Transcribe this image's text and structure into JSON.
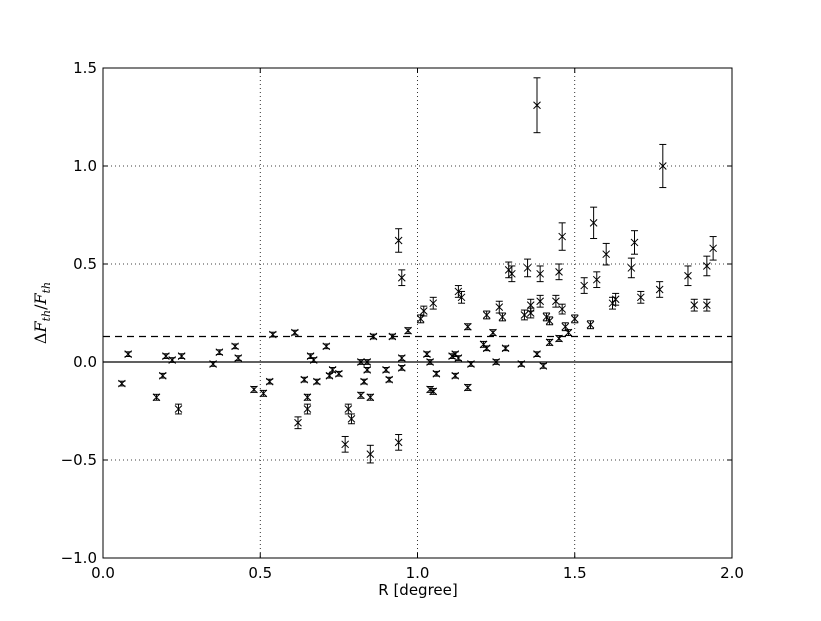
{
  "chart_data": {
    "type": "scatter",
    "xlabel": "R [degree]",
    "ylabel": "ΔF_th/F_th",
    "ylabel_parts": {
      "delta": "Δ",
      "f1": "F",
      "sub1": "th",
      "slash": "/",
      "f2": "F",
      "sub2": "th"
    },
    "xlim": [
      0.0,
      2.0
    ],
    "ylim": [
      -1.0,
      1.5
    ],
    "xticks": [
      0.0,
      0.5,
      1.0,
      1.5,
      2.0
    ],
    "yticks": [
      -1.0,
      -0.5,
      0.0,
      0.5,
      1.0,
      1.5
    ],
    "xtick_labels": [
      "0.0",
      "0.5",
      "1.0",
      "1.5",
      "2.0"
    ],
    "ytick_labels": [
      "−1.0",
      "−0.5",
      "0.0",
      "0.5",
      "1.0",
      "1.5"
    ],
    "grid": true,
    "marker": "x",
    "color": "#000000",
    "reference_lines": [
      {
        "y": 0.0,
        "style": "solid"
      },
      {
        "y": 0.13,
        "style": "dashed"
      }
    ],
    "points": [
      {
        "x": 0.06,
        "y": -0.11,
        "err": 0.012
      },
      {
        "x": 0.08,
        "y": 0.04,
        "err": 0.012
      },
      {
        "x": 0.17,
        "y": -0.18,
        "err": 0.015
      },
      {
        "x": 0.19,
        "y": -0.07,
        "err": 0.012
      },
      {
        "x": 0.2,
        "y": 0.03,
        "err": 0.012
      },
      {
        "x": 0.22,
        "y": 0.01,
        "err": 0.012
      },
      {
        "x": 0.24,
        "y": -0.24,
        "err": 0.025
      },
      {
        "x": 0.25,
        "y": 0.03,
        "err": 0.012
      },
      {
        "x": 0.35,
        "y": -0.01,
        "err": 0.012
      },
      {
        "x": 0.37,
        "y": 0.05,
        "err": 0.012
      },
      {
        "x": 0.42,
        "y": 0.08,
        "err": 0.012
      },
      {
        "x": 0.43,
        "y": 0.02,
        "err": 0.012
      },
      {
        "x": 0.48,
        "y": -0.14,
        "err": 0.015
      },
      {
        "x": 0.51,
        "y": -0.16,
        "err": 0.015
      },
      {
        "x": 0.53,
        "y": -0.1,
        "err": 0.012
      },
      {
        "x": 0.54,
        "y": 0.14,
        "err": 0.012
      },
      {
        "x": 0.61,
        "y": 0.15,
        "err": 0.012
      },
      {
        "x": 0.62,
        "y": -0.31,
        "err": 0.03
      },
      {
        "x": 0.64,
        "y": -0.09,
        "err": 0.012
      },
      {
        "x": 0.65,
        "y": -0.18,
        "err": 0.015
      },
      {
        "x": 0.65,
        "y": -0.24,
        "err": 0.025
      },
      {
        "x": 0.66,
        "y": 0.03,
        "err": 0.012
      },
      {
        "x": 0.67,
        "y": 0.01,
        "err": 0.012
      },
      {
        "x": 0.68,
        "y": -0.1,
        "err": 0.012
      },
      {
        "x": 0.71,
        "y": 0.08,
        "err": 0.012
      },
      {
        "x": 0.72,
        "y": -0.07,
        "err": 0.012
      },
      {
        "x": 0.73,
        "y": -0.04,
        "err": 0.012
      },
      {
        "x": 0.75,
        "y": -0.06,
        "err": 0.012
      },
      {
        "x": 0.77,
        "y": -0.42,
        "err": 0.04
      },
      {
        "x": 0.78,
        "y": -0.24,
        "err": 0.025
      },
      {
        "x": 0.79,
        "y": -0.29,
        "err": 0.025
      },
      {
        "x": 0.82,
        "y": 0.0,
        "err": 0.012
      },
      {
        "x": 0.82,
        "y": -0.17,
        "err": 0.015
      },
      {
        "x": 0.83,
        "y": -0.1,
        "err": 0.012
      },
      {
        "x": 0.84,
        "y": 0.0,
        "err": 0.012
      },
      {
        "x": 0.84,
        "y": -0.04,
        "err": 0.012
      },
      {
        "x": 0.85,
        "y": -0.18,
        "err": 0.015
      },
      {
        "x": 0.85,
        "y": -0.47,
        "err": 0.045
      },
      {
        "x": 0.86,
        "y": 0.13,
        "err": 0.012
      },
      {
        "x": 0.9,
        "y": -0.04,
        "err": 0.012
      },
      {
        "x": 0.91,
        "y": -0.09,
        "err": 0.012
      },
      {
        "x": 0.92,
        "y": 0.13,
        "err": 0.012
      },
      {
        "x": 0.94,
        "y": 0.62,
        "err": 0.06
      },
      {
        "x": 0.94,
        "y": -0.41,
        "err": 0.04
      },
      {
        "x": 0.95,
        "y": 0.43,
        "err": 0.04
      },
      {
        "x": 0.95,
        "y": -0.03,
        "err": 0.012
      },
      {
        "x": 0.95,
        "y": 0.02,
        "err": 0.012
      },
      {
        "x": 0.97,
        "y": 0.16,
        "err": 0.015
      },
      {
        "x": 1.01,
        "y": 0.22,
        "err": 0.02
      },
      {
        "x": 1.02,
        "y": 0.26,
        "err": 0.025
      },
      {
        "x": 1.03,
        "y": 0.04,
        "err": 0.012
      },
      {
        "x": 1.04,
        "y": 0.0,
        "err": 0.012
      },
      {
        "x": 1.04,
        "y": -0.14,
        "err": 0.015
      },
      {
        "x": 1.05,
        "y": -0.15,
        "err": 0.015
      },
      {
        "x": 1.05,
        "y": 0.3,
        "err": 0.03
      },
      {
        "x": 1.06,
        "y": -0.06,
        "err": 0.012
      },
      {
        "x": 1.11,
        "y": 0.03,
        "err": 0.012
      },
      {
        "x": 1.12,
        "y": 0.04,
        "err": 0.012
      },
      {
        "x": 1.12,
        "y": -0.07,
        "err": 0.012
      },
      {
        "x": 1.13,
        "y": 0.36,
        "err": 0.03
      },
      {
        "x": 1.13,
        "y": 0.02,
        "err": 0.012
      },
      {
        "x": 1.14,
        "y": 0.33,
        "err": 0.03
      },
      {
        "x": 1.16,
        "y": 0.18,
        "err": 0.015
      },
      {
        "x": 1.16,
        "y": -0.13,
        "err": 0.015
      },
      {
        "x": 1.17,
        "y": -0.01,
        "err": 0.012
      },
      {
        "x": 1.21,
        "y": 0.09,
        "err": 0.015
      },
      {
        "x": 1.22,
        "y": 0.24,
        "err": 0.02
      },
      {
        "x": 1.22,
        "y": 0.07,
        "err": 0.012
      },
      {
        "x": 1.24,
        "y": 0.15,
        "err": 0.015
      },
      {
        "x": 1.25,
        "y": 0.0,
        "err": 0.012
      },
      {
        "x": 1.26,
        "y": 0.28,
        "err": 0.03
      },
      {
        "x": 1.27,
        "y": 0.23,
        "err": 0.02
      },
      {
        "x": 1.28,
        "y": 0.07,
        "err": 0.012
      },
      {
        "x": 1.29,
        "y": 0.47,
        "err": 0.04
      },
      {
        "x": 1.3,
        "y": 0.45,
        "err": 0.04
      },
      {
        "x": 1.33,
        "y": -0.01,
        "err": 0.012
      },
      {
        "x": 1.34,
        "y": 0.24,
        "err": 0.025
      },
      {
        "x": 1.35,
        "y": 0.48,
        "err": 0.045
      },
      {
        "x": 1.36,
        "y": 0.25,
        "err": 0.025
      },
      {
        "x": 1.36,
        "y": 0.29,
        "err": 0.03
      },
      {
        "x": 1.38,
        "y": 0.04,
        "err": 0.012
      },
      {
        "x": 1.38,
        "y": 1.31,
        "err": 0.14
      },
      {
        "x": 1.39,
        "y": 0.31,
        "err": 0.03
      },
      {
        "x": 1.39,
        "y": 0.45,
        "err": 0.04
      },
      {
        "x": 1.4,
        "y": -0.02,
        "err": 0.012
      },
      {
        "x": 1.41,
        "y": 0.23,
        "err": 0.02
      },
      {
        "x": 1.42,
        "y": 0.21,
        "err": 0.02
      },
      {
        "x": 1.42,
        "y": 0.1,
        "err": 0.015
      },
      {
        "x": 1.44,
        "y": 0.31,
        "err": 0.03
      },
      {
        "x": 1.45,
        "y": 0.12,
        "err": 0.015
      },
      {
        "x": 1.45,
        "y": 0.46,
        "err": 0.04
      },
      {
        "x": 1.46,
        "y": 0.27,
        "err": 0.025
      },
      {
        "x": 1.46,
        "y": 0.64,
        "err": 0.07
      },
      {
        "x": 1.47,
        "y": 0.18,
        "err": 0.02
      },
      {
        "x": 1.48,
        "y": 0.15,
        "err": 0.015
      },
      {
        "x": 1.5,
        "y": 0.22,
        "err": 0.02
      },
      {
        "x": 1.53,
        "y": 0.39,
        "err": 0.04
      },
      {
        "x": 1.55,
        "y": 0.19,
        "err": 0.02
      },
      {
        "x": 1.56,
        "y": 0.71,
        "err": 0.08
      },
      {
        "x": 1.57,
        "y": 0.42,
        "err": 0.04
      },
      {
        "x": 1.6,
        "y": 0.55,
        "err": 0.055
      },
      {
        "x": 1.62,
        "y": 0.3,
        "err": 0.03
      },
      {
        "x": 1.63,
        "y": 0.32,
        "err": 0.03
      },
      {
        "x": 1.68,
        "y": 0.48,
        "err": 0.05
      },
      {
        "x": 1.69,
        "y": 0.61,
        "err": 0.06
      },
      {
        "x": 1.71,
        "y": 0.33,
        "err": 0.03
      },
      {
        "x": 1.77,
        "y": 0.37,
        "err": 0.04
      },
      {
        "x": 1.78,
        "y": 1.0,
        "err": 0.11
      },
      {
        "x": 1.86,
        "y": 0.44,
        "err": 0.05
      },
      {
        "x": 1.88,
        "y": 0.29,
        "err": 0.03
      },
      {
        "x": 1.92,
        "y": 0.29,
        "err": 0.03
      },
      {
        "x": 1.92,
        "y": 0.49,
        "err": 0.05
      },
      {
        "x": 1.94,
        "y": 0.58,
        "err": 0.06
      }
    ]
  }
}
